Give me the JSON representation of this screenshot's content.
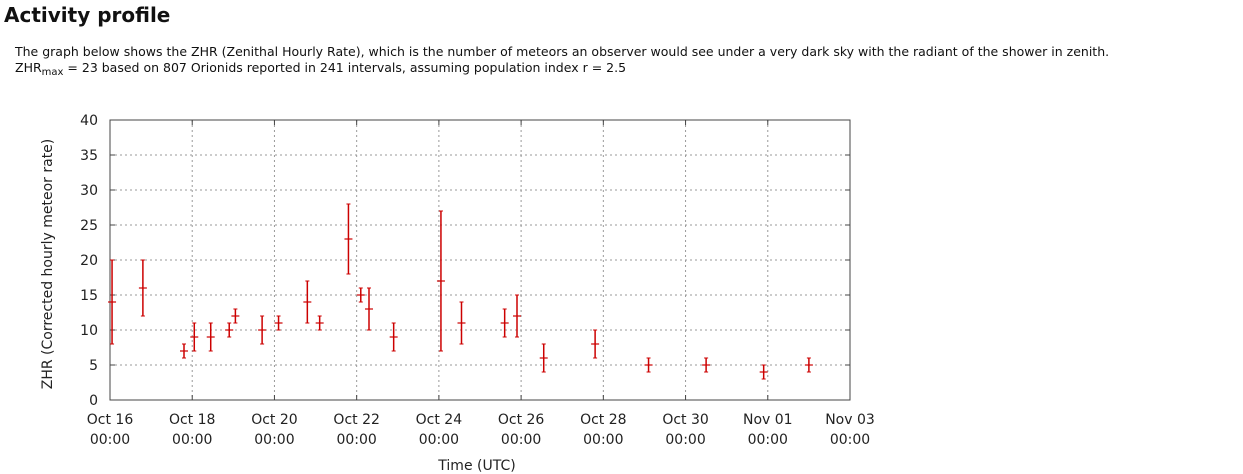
{
  "page": {
    "title": "Activity profile",
    "description_line1": "The graph below shows the ZHR (Zenithal Hourly Rate), which is the number of meteors an observer would see under a very dark sky with the radiant of the shower in zenith.",
    "zhr_prefix": "ZHR",
    "zhr_sub": "max",
    "zhr_text": " = 23 based on 807 Orionids reported in 241 intervals, assuming population index r = 2.5"
  },
  "chart_data": {
    "type": "scatter",
    "error_bars": true,
    "title": "",
    "xlabel": "Time (UTC)",
    "ylabel": "ZHR (Corrected hourly meteor rate)",
    "xlim": [
      0,
      18
    ],
    "ylim": [
      0,
      40
    ],
    "x_unit": "days since Oct 16 00:00",
    "yticks": [
      0,
      5,
      10,
      15,
      20,
      25,
      30,
      35,
      40
    ],
    "xticks": [
      {
        "value": 0,
        "line1": "Oct 16",
        "line2": "00:00"
      },
      {
        "value": 2,
        "line1": "Oct 18",
        "line2": "00:00"
      },
      {
        "value": 4,
        "line1": "Oct 20",
        "line2": "00:00"
      },
      {
        "value": 6,
        "line1": "Oct 22",
        "line2": "00:00"
      },
      {
        "value": 8,
        "line1": "Oct 24",
        "line2": "00:00"
      },
      {
        "value": 10,
        "line1": "Oct 26",
        "line2": "00:00"
      },
      {
        "value": 12,
        "line1": "Oct 28",
        "line2": "00:00"
      },
      {
        "value": 14,
        "line1": "Oct 30",
        "line2": "00:00"
      },
      {
        "value": 16,
        "line1": "Nov 01",
        "line2": "00:00"
      },
      {
        "value": 18,
        "line1": "Nov 03",
        "line2": "00:00"
      }
    ],
    "grid": true,
    "series": [
      {
        "name": "ZHR",
        "color": "#cc0000",
        "points": [
          {
            "x": 0.05,
            "y": 14,
            "low": 8,
            "high": 20
          },
          {
            "x": 0.8,
            "y": 16,
            "low": 12,
            "high": 20
          },
          {
            "x": 1.8,
            "y": 7,
            "low": 6,
            "high": 8
          },
          {
            "x": 2.05,
            "y": 9,
            "low": 7,
            "high": 11
          },
          {
            "x": 2.45,
            "y": 9,
            "low": 7,
            "high": 11
          },
          {
            "x": 2.9,
            "y": 10,
            "low": 9,
            "high": 11
          },
          {
            "x": 3.05,
            "y": 12,
            "low": 11,
            "high": 13
          },
          {
            "x": 3.7,
            "y": 10,
            "low": 8,
            "high": 12
          },
          {
            "x": 4.1,
            "y": 11,
            "low": 10,
            "high": 12
          },
          {
            "x": 4.8,
            "y": 14,
            "low": 11,
            "high": 17
          },
          {
            "x": 5.1,
            "y": 11,
            "low": 10,
            "high": 12
          },
          {
            "x": 5.8,
            "y": 23,
            "low": 18,
            "high": 28
          },
          {
            "x": 6.1,
            "y": 15,
            "low": 14,
            "high": 16
          },
          {
            "x": 6.3,
            "y": 13,
            "low": 10,
            "high": 16
          },
          {
            "x": 6.9,
            "y": 9,
            "low": 7,
            "high": 11
          },
          {
            "x": 8.05,
            "y": 17,
            "low": 7,
            "high": 27
          },
          {
            "x": 8.55,
            "y": 11,
            "low": 8,
            "high": 14
          },
          {
            "x": 9.6,
            "y": 11,
            "low": 9,
            "high": 13
          },
          {
            "x": 9.9,
            "y": 12,
            "low": 9,
            "high": 15
          },
          {
            "x": 10.55,
            "y": 6,
            "low": 4,
            "high": 8
          },
          {
            "x": 11.8,
            "y": 8,
            "low": 6,
            "high": 10
          },
          {
            "x": 13.1,
            "y": 5,
            "low": 4,
            "high": 6
          },
          {
            "x": 14.5,
            "y": 5,
            "low": 4,
            "high": 6
          },
          {
            "x": 15.9,
            "y": 4,
            "low": 3,
            "high": 5
          },
          {
            "x": 17.0,
            "y": 5,
            "low": 4,
            "high": 6
          }
        ]
      }
    ]
  }
}
